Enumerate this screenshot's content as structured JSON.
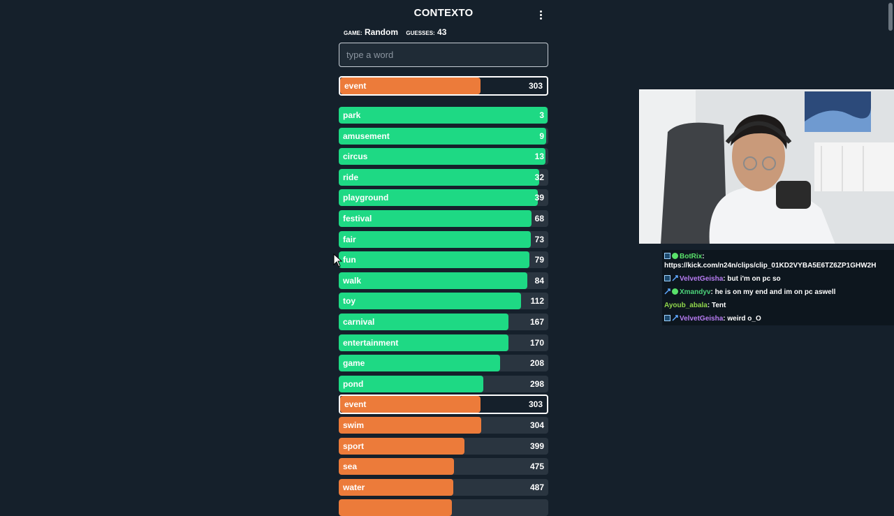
{
  "app": {
    "title": "CONTEXTO"
  },
  "stats": {
    "game_label": "GAME:",
    "game_value": "Random",
    "guesses_label": "GUESSES:",
    "guesses_value": "43"
  },
  "input": {
    "placeholder": "type a word"
  },
  "colors": {
    "green": "#1ed984",
    "orange": "#ec7b3a",
    "track": "#2a3540",
    "background": "#15202b"
  },
  "current_guess": {
    "word": "event",
    "rank": "303",
    "fill": 0.68,
    "color": "orange"
  },
  "guesses": [
    {
      "word": "park",
      "rank": "3",
      "fill": 0.995,
      "color": "green"
    },
    {
      "word": "amusement",
      "rank": "9",
      "fill": 0.99,
      "color": "green"
    },
    {
      "word": "circus",
      "rank": "13",
      "fill": 0.985,
      "color": "green"
    },
    {
      "word": "ride",
      "rank": "32",
      "fill": 0.955,
      "color": "green"
    },
    {
      "word": "playground",
      "rank": "39",
      "fill": 0.95,
      "color": "green"
    },
    {
      "word": "festival",
      "rank": "68",
      "fill": 0.92,
      "color": "green"
    },
    {
      "word": "fair",
      "rank": "73",
      "fill": 0.915,
      "color": "green"
    },
    {
      "word": "fun",
      "rank": "79",
      "fill": 0.91,
      "color": "green"
    },
    {
      "word": "walk",
      "rank": "84",
      "fill": 0.9,
      "color": "green"
    },
    {
      "word": "toy",
      "rank": "112",
      "fill": 0.87,
      "color": "green"
    },
    {
      "word": "carnival",
      "rank": "167",
      "fill": 0.81,
      "color": "green"
    },
    {
      "word": "entertainment",
      "rank": "170",
      "fill": 0.81,
      "color": "green"
    },
    {
      "word": "game",
      "rank": "208",
      "fill": 0.77,
      "color": "green"
    },
    {
      "word": "pond",
      "rank": "298",
      "fill": 0.69,
      "color": "green"
    },
    {
      "word": "event",
      "rank": "303",
      "fill": 0.68,
      "color": "orange",
      "highlight": true
    },
    {
      "word": "swim",
      "rank": "304",
      "fill": 0.68,
      "color": "orange"
    },
    {
      "word": "sport",
      "rank": "399",
      "fill": 0.6,
      "color": "orange"
    },
    {
      "word": "sea",
      "rank": "475",
      "fill": 0.55,
      "color": "orange"
    },
    {
      "word": "water",
      "rank": "487",
      "fill": 0.545,
      "color": "orange"
    },
    {
      "word": "",
      "rank": "",
      "fill": 0.54,
      "color": "orange"
    }
  ],
  "chat": {
    "messages": [
      {
        "user": "BotRix",
        "user_color": "#59e16a",
        "text": "",
        "badges": [
          "box",
          "bot"
        ],
        "link": "https://kick.com/n24n/clips/clip_01KD2VYBA5E6TZ6ZP1GHW2H"
      },
      {
        "user": "VelvetGeisha",
        "user_color": "#b77cf2",
        "text": "but i'm on pc so",
        "badges": [
          "box",
          "mod"
        ]
      },
      {
        "user": "Xmandyv",
        "user_color": "#4cd37a",
        "text": "he is on my end and im on pc aswell",
        "badges": [
          "mod",
          "bot"
        ]
      },
      {
        "user": "Ayoub_abala",
        "user_color": "#8fd64b",
        "text": "Tent",
        "badges": []
      },
      {
        "user": "VelvetGeisha",
        "user_color": "#b77cf2",
        "text": "weird o_O",
        "badges": [
          "box",
          "mod"
        ]
      }
    ]
  }
}
